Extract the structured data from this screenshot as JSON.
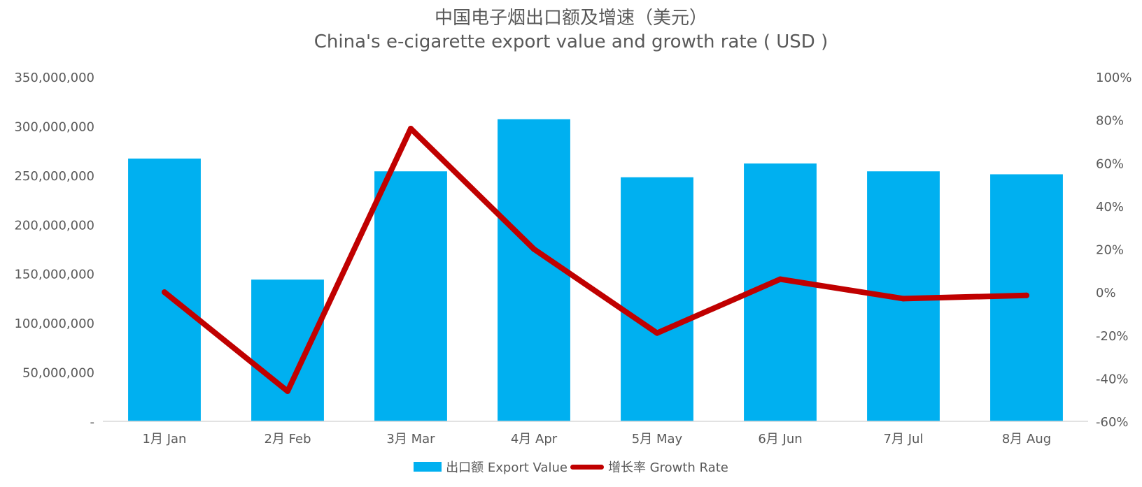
{
  "chart_data": {
    "type": "bar",
    "title": "中国电子烟出口额及增速（美元）",
    "subtitle": "China's e-cigarette export value and growth rate ( USD )",
    "categories": [
      "1月 Jan",
      "2月 Feb",
      "3月 Mar",
      "4月 Apr",
      "5月 May",
      "6月 Jun",
      "7月 Jul",
      "8月 Aug"
    ],
    "series": [
      {
        "name": "出口额 Export Value",
        "type": "bar",
        "axis": "left",
        "color": "#00b0f0",
        "values": [
          267000000,
          144000000,
          254000000,
          307000000,
          248000000,
          262000000,
          254000000,
          251000000
        ]
      },
      {
        "name": "增长率 Growth Rate",
        "type": "line",
        "axis": "right",
        "color": "#c00000",
        "values": [
          0.0,
          -0.46,
          0.76,
          0.2,
          -0.19,
          0.06,
          -0.03,
          -0.015
        ]
      }
    ],
    "y_left": {
      "ylim": [
        0,
        350000000
      ],
      "ticks": [
        "-",
        "50,000,000",
        "100,000,000",
        "150,000,000",
        "200,000,000",
        "250,000,000",
        "300,000,000",
        "350,000,000"
      ]
    },
    "y_right": {
      "ylim": [
        -0.6,
        1.0
      ],
      "ticks": [
        "-60%",
        "-40%",
        "-20%",
        "0%",
        "20%",
        "40%",
        "60%",
        "80%",
        "100%"
      ]
    },
    "grid": false,
    "legend_position": "bottom"
  }
}
